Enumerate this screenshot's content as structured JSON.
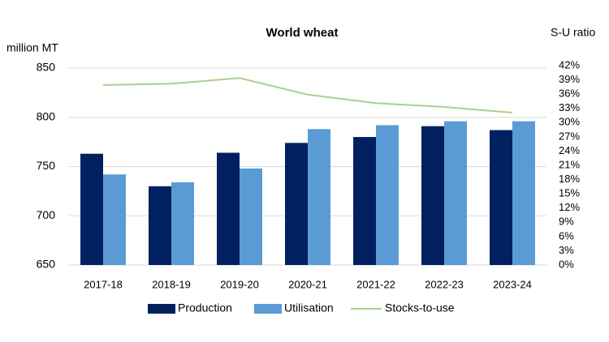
{
  "chart_data": {
    "type": "bar-line",
    "title": "World wheat",
    "ylabel": "million MT",
    "y2label": "S-U ratio",
    "categories": [
      "2017-18",
      "2018-19",
      "2019-20",
      "2020-21",
      "2021-22",
      "2022-23",
      "2023-24"
    ],
    "series": [
      {
        "name": "Production",
        "type": "bar",
        "color": "#002060",
        "values": [
          763,
          730,
          764,
          774,
          780,
          791,
          787
        ]
      },
      {
        "name": "Utilisation",
        "type": "bar",
        "color": "#5b9bd5",
        "values": [
          742,
          734,
          748,
          788,
          792,
          796,
          796
        ]
      },
      {
        "name": "Stocks-to-use",
        "type": "line",
        "axis": "y2",
        "color": "#a9d18e",
        "values": [
          37.9,
          38.2,
          39.4,
          35.9,
          34.1,
          33.3,
          32.1
        ]
      }
    ],
    "ylim": [
      650,
      850
    ],
    "yticks": [
      650,
      700,
      750,
      800,
      850
    ],
    "y2lim": [
      0,
      42
    ],
    "y2ticks": [
      {
        "value": 0,
        "label": "0%"
      },
      {
        "value": 3,
        "label": "3%"
      },
      {
        "value": 6,
        "label": "6%"
      },
      {
        "value": 9,
        "label": "9%"
      },
      {
        "value": 12,
        "label": "12%"
      },
      {
        "value": 15,
        "label": "15%"
      },
      {
        "value": 18,
        "label": "18%"
      },
      {
        "value": 21,
        "label": "21%"
      },
      {
        "value": 24,
        "label": "24%"
      },
      {
        "value": 27,
        "label": "27%"
      },
      {
        "value": 30,
        "label": "30%"
      },
      {
        "value": 33,
        "label": "33%"
      },
      {
        "value": 36,
        "label": "36%"
      },
      {
        "value": 39,
        "label": "39%"
      },
      {
        "value": 42,
        "label": "42%"
      }
    ],
    "grid": true,
    "legend": "bottom"
  }
}
